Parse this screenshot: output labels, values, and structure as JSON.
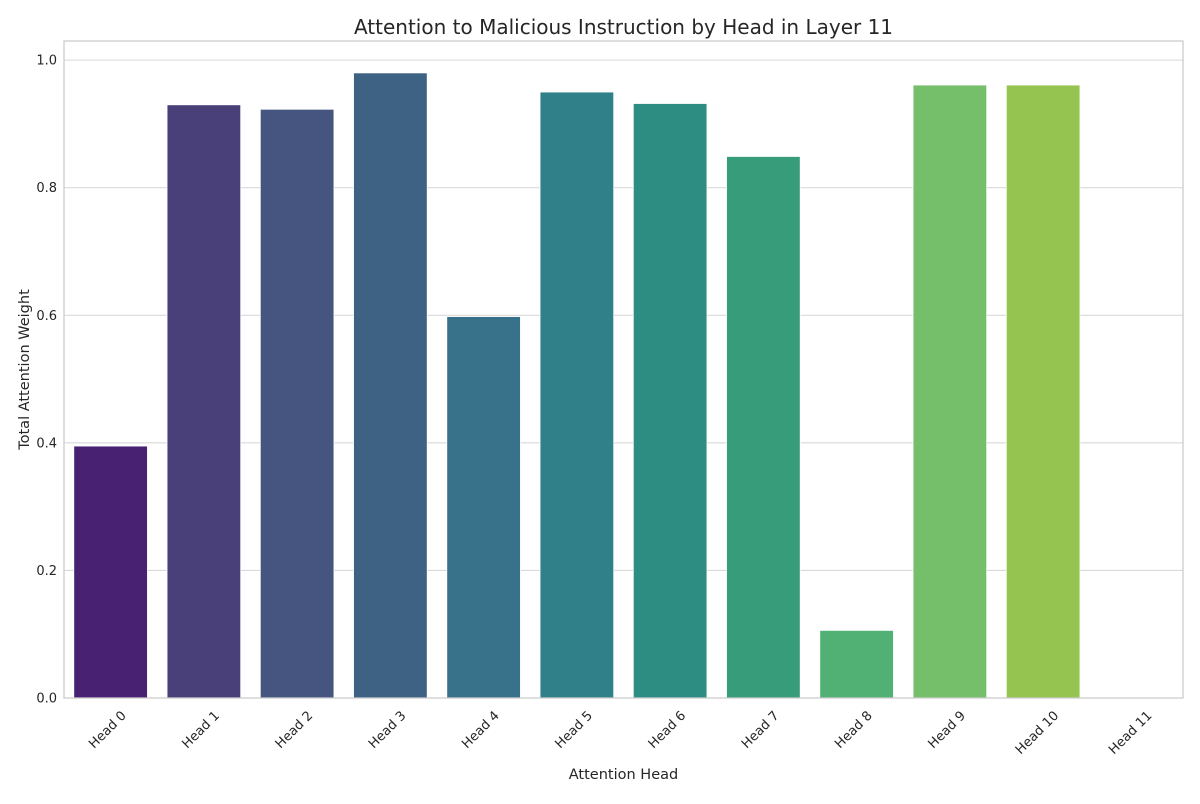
{
  "chart_data": {
    "type": "bar",
    "title": "Attention to Malicious Instruction by Head in Layer 11",
    "xlabel": "Attention Head",
    "ylabel": "Total Attention Weight",
    "categories": [
      "Head 0",
      "Head 1",
      "Head 2",
      "Head 3",
      "Head 4",
      "Head 5",
      "Head 6",
      "Head 7",
      "Head 8",
      "Head 9",
      "Head 10",
      "Head 11"
    ],
    "values": [
      0.395,
      0.93,
      0.923,
      0.98,
      0.598,
      0.95,
      0.932,
      0.849,
      0.106,
      0.961,
      0.961,
      0.0
    ],
    "colors": [
      "#482173",
      "#4a4079",
      "#46557f",
      "#3e6283",
      "#38728a",
      "#30808a",
      "#2e8d82",
      "#369c7a",
      "#51b073",
      "#75bf6b",
      "#95c451",
      "#c8e020"
    ],
    "ylim": [
      0,
      1.03
    ],
    "yticks": [
      "0.0",
      "0.2",
      "0.4",
      "0.6",
      "0.8",
      "1.0"
    ],
    "ytick_values": [
      0,
      0.2,
      0.4,
      0.6,
      0.8,
      1.0
    ],
    "grid": true,
    "legend": "none"
  }
}
